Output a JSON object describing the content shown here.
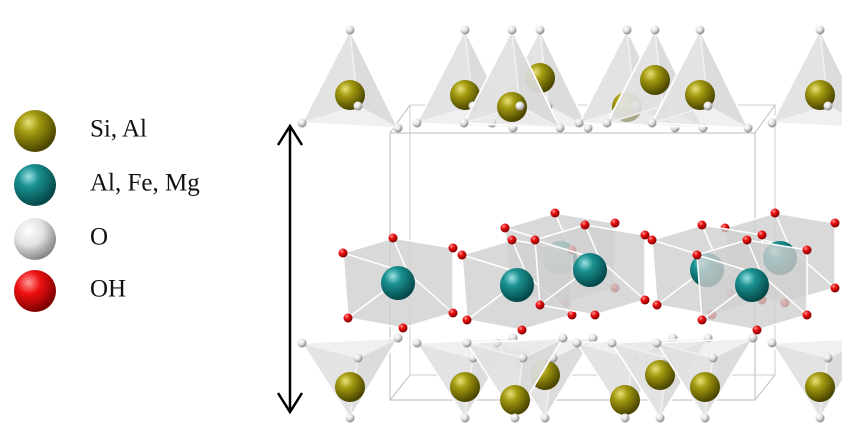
{
  "legend": {
    "items": [
      {
        "label": "Si, Al"
      },
      {
        "label": "Al, Fe, Mg"
      },
      {
        "label": "O"
      },
      {
        "label": "OH"
      }
    ]
  }
}
